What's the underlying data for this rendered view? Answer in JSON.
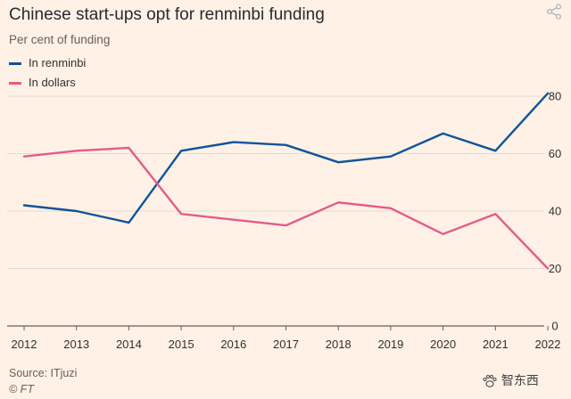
{
  "title": "Chinese start-ups opt for renminbi funding",
  "subtitle": "Per cent of funding",
  "legend": [
    {
      "label": "In renminbi",
      "color": "#0f5499"
    },
    {
      "label": "In dollars",
      "color": "#e35c8a"
    }
  ],
  "source": "Source: ITjuzi",
  "copyright": "© FT",
  "watermark": {
    "icon": "paw-logo-icon",
    "text": "智东西"
  },
  "share_icon": "share-icon",
  "chart_data": {
    "type": "line",
    "title": "Chinese start-ups opt for renminbi funding",
    "ylabel": "Per cent of funding",
    "xlabel": "",
    "categories": [
      "2012",
      "2013",
      "2014",
      "2015",
      "2016",
      "2017",
      "2018",
      "2019",
      "2020",
      "2021",
      "2022"
    ],
    "ylim": [
      0,
      80
    ],
    "yticks": [
      0,
      20,
      40,
      60,
      80
    ],
    "grid": true,
    "legend_position": "top-left",
    "series": [
      {
        "name": "In renminbi",
        "color": "#0f5499",
        "values": [
          42,
          40,
          36,
          61,
          64,
          63,
          57,
          59,
          67,
          61,
          81
        ]
      },
      {
        "name": "In dollars",
        "color": "#e35c8a",
        "values": [
          59,
          61,
          62,
          39,
          37,
          35,
          43,
          41,
          32,
          39,
          20
        ]
      }
    ]
  }
}
